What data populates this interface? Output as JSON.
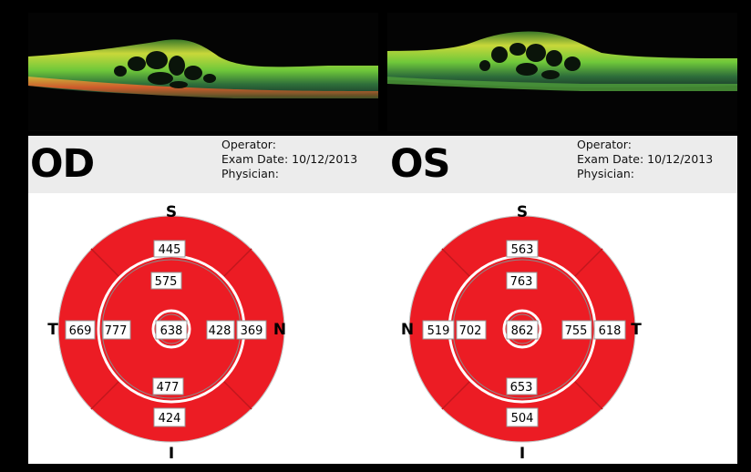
{
  "od": {
    "eye_label": "OD",
    "operator_label": "Operator:",
    "exam_date_label": "Exam Date: 10/12/2013",
    "physician_label": "Physician:",
    "dirs": {
      "top": "S",
      "bottom": "I",
      "left": "T",
      "right": "N"
    },
    "values": {
      "outer_top": "445",
      "inner_top": "575",
      "center": "638",
      "outer_left": "669",
      "inner_left": "777",
      "inner_right": "428",
      "outer_right": "369",
      "inner_bottom": "477",
      "outer_bottom": "424"
    }
  },
  "os": {
    "eye_label": "OS",
    "operator_label": "Operator:",
    "exam_date_label": "Exam Date: 10/12/2013",
    "physician_label": "Physician:",
    "dirs": {
      "top": "S",
      "bottom": "I",
      "left": "N",
      "right": "T"
    },
    "values": {
      "outer_top": "563",
      "inner_top": "763",
      "center": "862",
      "outer_left": "519",
      "inner_left": "702",
      "inner_right": "755",
      "outer_right": "618",
      "inner_bottom": "653",
      "outer_bottom": "504"
    }
  },
  "colors": {
    "map_red": "#ec1c24",
    "retina_green": "#6fc83a",
    "retina_yellow": "#e6e23c"
  }
}
